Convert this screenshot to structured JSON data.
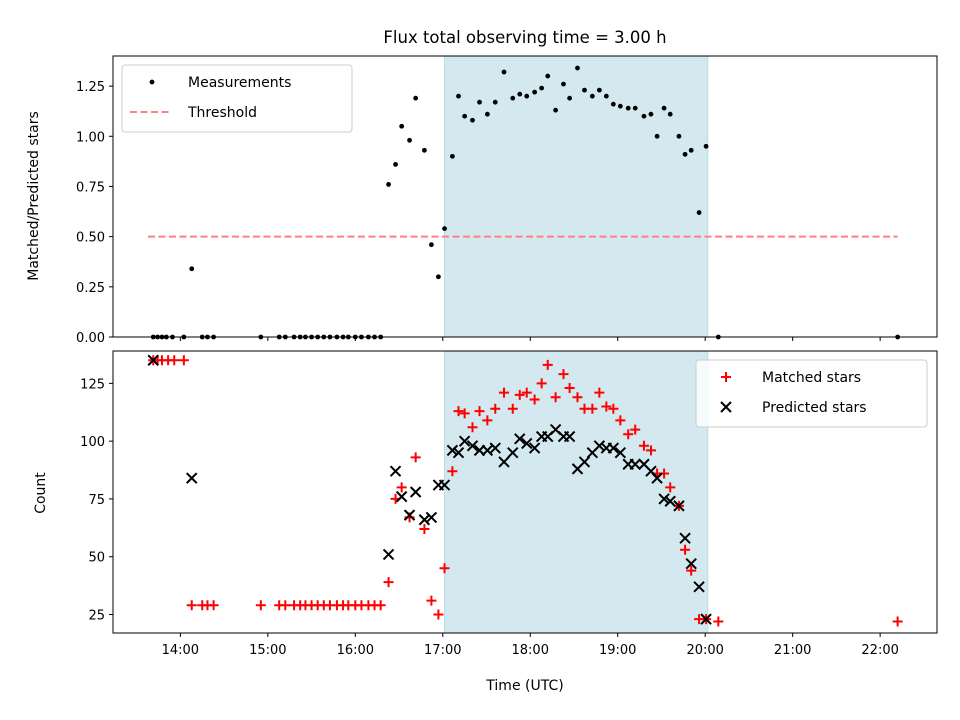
{
  "chart_data": {
    "title": "Flux total observing time = 3.00 h",
    "x_axis": {
      "label": "Time (UTC)",
      "tick_labels": [
        "14:00",
        "15:00",
        "16:00",
        "17:00",
        "18:00",
        "19:00",
        "20:00",
        "21:00",
        "22:00"
      ],
      "tick_hours": [
        14,
        15,
        16,
        17,
        18,
        19,
        20,
        21,
        22
      ],
      "range_hours": [
        13.23,
        22.65
      ]
    },
    "highlight_span_hours": [
      17.02,
      20.03
    ],
    "highlight_color": "#d3e9ef",
    "top_panel": {
      "type": "scatter",
      "ylabel": "Matched/Predicted stars",
      "ylim": [
        0,
        1.4
      ],
      "yticks": [
        0.0,
        0.25,
        0.5,
        0.75,
        1.0,
        1.25
      ],
      "ytick_labels": [
        "0.00",
        "0.25",
        "0.50",
        "0.75",
        "1.00",
        "1.25"
      ],
      "legend_position": "upper-left",
      "series": [
        {
          "name": "Measurements",
          "marker": "dot",
          "color": "#000000",
          "points": [
            [
              13.69,
              0.0
            ],
            [
              13.74,
              0.0
            ],
            [
              13.79,
              0.0
            ],
            [
              13.84,
              0.0
            ],
            [
              13.91,
              0.0
            ],
            [
              14.04,
              0.0
            ],
            [
              14.13,
              0.34
            ],
            [
              14.25,
              0.0
            ],
            [
              14.31,
              0.0
            ],
            [
              14.38,
              0.0
            ],
            [
              14.92,
              0.0
            ],
            [
              15.13,
              0.0
            ],
            [
              15.2,
              0.0
            ],
            [
              15.3,
              0.0
            ],
            [
              15.37,
              0.0
            ],
            [
              15.43,
              0.0
            ],
            [
              15.5,
              0.0
            ],
            [
              15.57,
              0.0
            ],
            [
              15.64,
              0.0
            ],
            [
              15.71,
              0.0
            ],
            [
              15.79,
              0.0
            ],
            [
              15.86,
              0.0
            ],
            [
              15.92,
              0.0
            ],
            [
              16.0,
              0.0
            ],
            [
              16.07,
              0.0
            ],
            [
              16.15,
              0.0
            ],
            [
              16.22,
              0.0
            ],
            [
              16.29,
              0.0
            ],
            [
              16.38,
              0.76
            ],
            [
              16.46,
              0.86
            ],
            [
              16.53,
              1.05
            ],
            [
              16.62,
              0.98
            ],
            [
              16.69,
              1.19
            ],
            [
              16.79,
              0.93
            ],
            [
              16.87,
              0.46
            ],
            [
              16.95,
              0.3
            ],
            [
              17.02,
              0.54
            ],
            [
              17.11,
              0.9
            ],
            [
              17.18,
              1.2
            ],
            [
              17.25,
              1.1
            ],
            [
              17.34,
              1.08
            ],
            [
              17.42,
              1.17
            ],
            [
              17.51,
              1.11
            ],
            [
              17.6,
              1.17
            ],
            [
              17.7,
              1.32
            ],
            [
              17.8,
              1.19
            ],
            [
              17.88,
              1.21
            ],
            [
              17.96,
              1.2
            ],
            [
              18.05,
              1.22
            ],
            [
              18.13,
              1.24
            ],
            [
              18.2,
              1.3
            ],
            [
              18.29,
              1.13
            ],
            [
              18.38,
              1.26
            ],
            [
              18.45,
              1.19
            ],
            [
              18.54,
              1.34
            ],
            [
              18.62,
              1.23
            ],
            [
              18.71,
              1.2
            ],
            [
              18.79,
              1.23
            ],
            [
              18.87,
              1.2
            ],
            [
              18.95,
              1.16
            ],
            [
              19.03,
              1.15
            ],
            [
              19.12,
              1.14
            ],
            [
              19.2,
              1.14
            ],
            [
              19.3,
              1.1
            ],
            [
              19.38,
              1.11
            ],
            [
              19.45,
              1.0
            ],
            [
              19.53,
              1.14
            ],
            [
              19.6,
              1.11
            ],
            [
              19.7,
              1.0
            ],
            [
              19.77,
              0.91
            ],
            [
              19.84,
              0.93
            ],
            [
              19.93,
              0.62
            ],
            [
              20.01,
              0.95
            ],
            [
              20.15,
              0.0
            ],
            [
              22.2,
              0.0
            ]
          ]
        },
        {
          "name": "Threshold",
          "line_style": "dashed",
          "color": "#ff8080",
          "points": [
            [
              13.63,
              0.5
            ],
            [
              22.2,
              0.5
            ]
          ]
        }
      ]
    },
    "bottom_panel": {
      "type": "scatter",
      "ylabel": "Count",
      "ylim": [
        17,
        139
      ],
      "yticks": [
        25,
        50,
        75,
        100,
        125
      ],
      "ytick_labels": [
        "25",
        "50",
        "75",
        "100",
        "125"
      ],
      "legend_position": "upper-right",
      "series": [
        {
          "name": "Matched stars",
          "marker": "plus",
          "color": "#ff0000",
          "points": [
            [
              13.69,
              135
            ],
            [
              13.74,
              135
            ],
            [
              13.79,
              135
            ],
            [
              13.86,
              135
            ],
            [
              13.93,
              135
            ],
            [
              14.04,
              135
            ],
            [
              14.13,
              29
            ],
            [
              14.25,
              29
            ],
            [
              14.31,
              29
            ],
            [
              14.38,
              29
            ],
            [
              14.92,
              29
            ],
            [
              15.13,
              29
            ],
            [
              15.2,
              29
            ],
            [
              15.3,
              29
            ],
            [
              15.37,
              29
            ],
            [
              15.43,
              29
            ],
            [
              15.5,
              29
            ],
            [
              15.57,
              29
            ],
            [
              15.64,
              29
            ],
            [
              15.71,
              29
            ],
            [
              15.79,
              29
            ],
            [
              15.86,
              29
            ],
            [
              15.92,
              29
            ],
            [
              16.0,
              29
            ],
            [
              16.07,
              29
            ],
            [
              16.15,
              29
            ],
            [
              16.22,
              29
            ],
            [
              16.29,
              29
            ],
            [
              16.38,
              39
            ],
            [
              16.46,
              75
            ],
            [
              16.53,
              80
            ],
            [
              16.62,
              67
            ],
            [
              16.69,
              93
            ],
            [
              16.79,
              62
            ],
            [
              16.87,
              31
            ],
            [
              16.95,
              25
            ],
            [
              17.02,
              45
            ],
            [
              17.11,
              87
            ],
            [
              17.18,
              113
            ],
            [
              17.25,
              112
            ],
            [
              17.34,
              106
            ],
            [
              17.42,
              113
            ],
            [
              17.51,
              109
            ],
            [
              17.6,
              114
            ],
            [
              17.7,
              121
            ],
            [
              17.8,
              114
            ],
            [
              17.88,
              120
            ],
            [
              17.96,
              121
            ],
            [
              18.05,
              118
            ],
            [
              18.13,
              125
            ],
            [
              18.2,
              133
            ],
            [
              18.29,
              119
            ],
            [
              18.38,
              129
            ],
            [
              18.45,
              123
            ],
            [
              18.54,
              119
            ],
            [
              18.62,
              114
            ],
            [
              18.71,
              114
            ],
            [
              18.79,
              121
            ],
            [
              18.87,
              115
            ],
            [
              18.95,
              114
            ],
            [
              19.03,
              109
            ],
            [
              19.12,
              103
            ],
            [
              19.2,
              105
            ],
            [
              19.3,
              98
            ],
            [
              19.38,
              96
            ],
            [
              19.45,
              86
            ],
            [
              19.53,
              86
            ],
            [
              19.6,
              80
            ],
            [
              19.7,
              72
            ],
            [
              19.77,
              53
            ],
            [
              19.84,
              44
            ],
            [
              19.93,
              23
            ],
            [
              20.01,
              23
            ],
            [
              20.15,
              22
            ],
            [
              22.2,
              22
            ]
          ]
        },
        {
          "name": "Predicted stars",
          "marker": "x",
          "color": "#000000",
          "points": [
            [
              13.69,
              135
            ],
            [
              14.13,
              84
            ],
            [
              16.38,
              51
            ],
            [
              16.46,
              87
            ],
            [
              16.53,
              76
            ],
            [
              16.62,
              68
            ],
            [
              16.69,
              78
            ],
            [
              16.79,
              66
            ],
            [
              16.87,
              67
            ],
            [
              16.95,
              81
            ],
            [
              17.02,
              81
            ],
            [
              17.11,
              96
            ],
            [
              17.18,
              95
            ],
            [
              17.25,
              100
            ],
            [
              17.34,
              98
            ],
            [
              17.42,
              96
            ],
            [
              17.51,
              96
            ],
            [
              17.6,
              97
            ],
            [
              17.7,
              91
            ],
            [
              17.8,
              95
            ],
            [
              17.88,
              101
            ],
            [
              17.96,
              99
            ],
            [
              18.05,
              97
            ],
            [
              18.13,
              102
            ],
            [
              18.2,
              102
            ],
            [
              18.29,
              105
            ],
            [
              18.38,
              102
            ],
            [
              18.45,
              102
            ],
            [
              18.54,
              88
            ],
            [
              18.62,
              91
            ],
            [
              18.71,
              95
            ],
            [
              18.79,
              98
            ],
            [
              18.87,
              97
            ],
            [
              18.95,
              97
            ],
            [
              19.03,
              95
            ],
            [
              19.12,
              90
            ],
            [
              19.2,
              90
            ],
            [
              19.3,
              90
            ],
            [
              19.38,
              87
            ],
            [
              19.45,
              84
            ],
            [
              19.53,
              75
            ],
            [
              19.6,
              74
            ],
            [
              19.7,
              72
            ],
            [
              19.77,
              58
            ],
            [
              19.84,
              47
            ],
            [
              19.93,
              37
            ],
            [
              20.01,
              23
            ]
          ]
        }
      ]
    }
  }
}
